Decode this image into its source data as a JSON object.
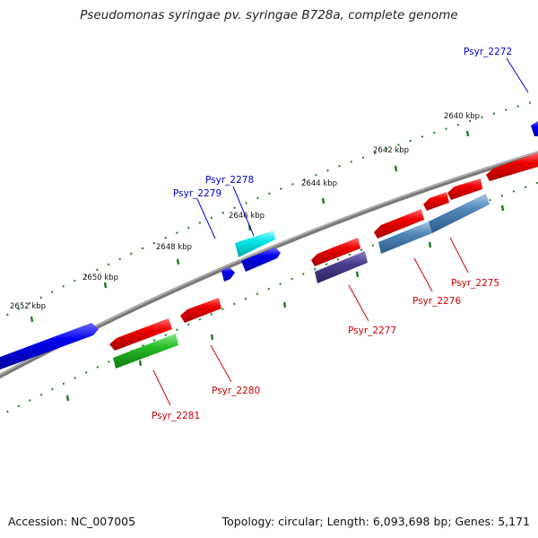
{
  "title": "Pseudomonas syringae pv. syringae B728a, complete genome",
  "footer": {
    "accession": "Accession: NC_007005",
    "info": "Topology: circular; Length: 6,093,698 bp; Genes: 5,171"
  },
  "colors": {
    "backbone": "#7a7a7a",
    "tick": "#1f7a1f",
    "forward_label": "#0000cc",
    "reverse_label": "#cc0000",
    "cds_forward": "#0000ee",
    "cds_reverse": "#ee0000",
    "cyan_gene": "#00e5e5",
    "green_gene": "#22bb22",
    "purple_gene": "#4a3c8c",
    "steel_gene": "#4f86b8"
  },
  "scale": {
    "labels": [
      "2652 kbp",
      "2650 kbp",
      "2648 kbp",
      "2646 kbp",
      "2644 kbp",
      "2642 kbp",
      "2640 kbp"
    ]
  },
  "genes": {
    "forward": [
      "Psyr_2272",
      "Psyr_2278",
      "Psyr_2279"
    ],
    "reverse": [
      "Psyr_2275",
      "Psyr_2276",
      "Psyr_2277",
      "Psyr_2280",
      "Psyr_2281"
    ]
  }
}
